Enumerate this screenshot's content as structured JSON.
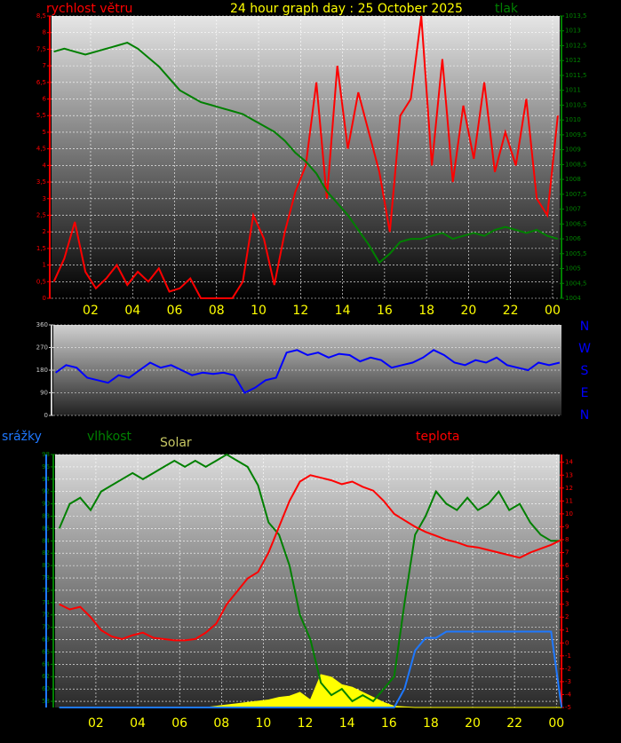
{
  "chart_data": [
    {
      "type": "line",
      "title": "24 hour graph day : 25 October 2025",
      "y_label": "rychlost větru",
      "y2_label": "tlak",
      "grid": true,
      "x": [
        0.25,
        0.75,
        1.25,
        1.75,
        2.25,
        2.75,
        3.25,
        3.75,
        4.25,
        4.75,
        5.25,
        5.75,
        6.25,
        6.75,
        7.25,
        7.75,
        8.25,
        8.75,
        9.25,
        9.75,
        10.25,
        10.75,
        11.25,
        11.75,
        12.25,
        12.75,
        13.25,
        13.75,
        14.25,
        14.75,
        15.25,
        15.75,
        16.25,
        16.75,
        17.25,
        17.75,
        18.25,
        18.75,
        19.25,
        19.75,
        20.25,
        20.75,
        21.25,
        21.75,
        22.25,
        22.75,
        23.25,
        23.75,
        24.25
      ],
      "xlim": [
        0.14,
        24.34
      ],
      "xticks": [
        {
          "value": 2,
          "label": "02"
        },
        {
          "value": 4,
          "label": "04"
        },
        {
          "value": 6,
          "label": "06"
        },
        {
          "value": 8,
          "label": "08"
        },
        10,
        12,
        14,
        16,
        18,
        20,
        22,
        {
          "value": 24,
          "label": "00"
        }
      ],
      "ylim": [
        0,
        8.5
      ],
      "yticks": [
        0,
        {
          "value": 0.5,
          "label": "0,5"
        },
        1,
        {
          "value": 1.5,
          "label": "1,5"
        },
        2,
        {
          "value": 2.5,
          "label": "2,5"
        },
        3,
        {
          "value": 3.5,
          "label": "3,5"
        },
        4,
        {
          "value": 4.5,
          "label": "4,5"
        },
        5,
        {
          "value": 5.5,
          "label": "5,5"
        },
        6,
        {
          "value": 6.5,
          "label": "6,5"
        },
        7,
        {
          "value": 7.5,
          "label": "7,5"
        },
        8,
        {
          "value": 8.5,
          "label": "8,5"
        }
      ],
      "y2lim": [
        1004,
        1013.5
      ],
      "y2ticks": [
        1004,
        {
          "value": 1004.5,
          "label": "1004,5"
        },
        1005,
        {
          "value": 1005.5,
          "label": "1005,5"
        },
        1006,
        {
          "value": 1006.5,
          "label": "1006,5"
        },
        1007,
        {
          "value": 1007.5,
          "label": "1007,5"
        },
        1008,
        {
          "value": 1008.5,
          "label": "1008,5"
        },
        1009,
        {
          "value": 1009.5,
          "label": "1009,5"
        },
        1010,
        {
          "value": 1010.5,
          "label": "1010,5"
        },
        1011,
        {
          "value": 1011.5,
          "label": "1011,5"
        },
        1012,
        {
          "value": 1012.5,
          "label": "1012,5"
        },
        1013,
        {
          "value": 1013.5,
          "label": "1013,5"
        }
      ],
      "series": [
        {
          "color": "#ff0000",
          "values": [
            0.5,
            1.2,
            2.3,
            0.8,
            0.3,
            0.6,
            1,
            0.4,
            0.8,
            0.5,
            0.9,
            0.2,
            0.3,
            0.6,
            0,
            0,
            0,
            0,
            0.5,
            2.5,
            1.8,
            0.4,
            2,
            3.2,
            4,
            6.5,
            3,
            7,
            4.5,
            6.2,
            5,
            3.8,
            2,
            5.5,
            6,
            8.5,
            4,
            7.2,
            3.5,
            5.8,
            4.2,
            6.5,
            3.8,
            5,
            4,
            6,
            3,
            2.5,
            5.5
          ]
        },
        {
          "color": "#008000",
          "axis": "y2",
          "values": [
            1012.3,
            1012.4,
            1012.3,
            1012.2,
            1012.3,
            1012.4,
            1012.5,
            1012.6,
            1012.4,
            1012.1,
            1011.8,
            1011.4,
            1011,
            1010.8,
            1010.6,
            1010.5,
            1010.4,
            1010.3,
            1010.2,
            1010,
            1009.8,
            1009.6,
            1009.3,
            1008.9,
            1008.6,
            1008.2,
            1007.6,
            1007.2,
            1006.8,
            1006.3,
            1005.8,
            1005.2,
            1005.5,
            1005.9,
            1006,
            1006,
            1006.1,
            1006.2,
            1006,
            1006.1,
            1006.2,
            1006.1,
            1006.3,
            1006.4,
            1006.3,
            1006.2,
            1006.3,
            1006.1,
            1006
          ]
        }
      ]
    },
    {
      "type": "line",
      "grid": true,
      "direction_labels": [
        "N",
        "W",
        "S",
        "E",
        "N"
      ],
      "x": [
        0.25,
        0.75,
        1.25,
        1.75,
        2.25,
        2.75,
        3.25,
        3.75,
        4.25,
        4.75,
        5.25,
        5.75,
        6.25,
        6.75,
        7.25,
        7.75,
        8.25,
        8.75,
        9.25,
        9.75,
        10.25,
        10.75,
        11.25,
        11.75,
        12.25,
        12.75,
        13.25,
        13.75,
        14.25,
        14.75,
        15.25,
        15.75,
        16.25,
        16.75,
        17.25,
        17.75,
        18.25,
        18.75,
        19.25,
        19.75,
        20.25,
        20.75,
        21.25,
        21.75,
        22.25,
        22.75,
        23.25,
        23.75,
        24.25
      ],
      "xlim": [
        0.14,
        24.34
      ],
      "ylim": [
        0,
        360
      ],
      "yticks": [
        0,
        90,
        180,
        270,
        360
      ],
      "series": [
        {
          "color": "#0000ff",
          "values": [
            170,
            200,
            190,
            150,
            140,
            130,
            160,
            150,
            180,
            210,
            190,
            200,
            180,
            160,
            170,
            165,
            170,
            160,
            90,
            110,
            140,
            150,
            250,
            260,
            240,
            250,
            230,
            245,
            240,
            215,
            230,
            220,
            190,
            200,
            210,
            230,
            260,
            240,
            210,
            200,
            220,
            210,
            230,
            200,
            190,
            180,
            210,
            200,
            210
          ]
        }
      ]
    },
    {
      "type": "line",
      "grid": true,
      "x": [
        0.25,
        0.75,
        1.25,
        1.75,
        2.25,
        2.75,
        3.25,
        3.75,
        4.25,
        4.75,
        5.25,
        5.75,
        6.25,
        6.75,
        7.25,
        7.75,
        8.25,
        8.75,
        9.25,
        9.75,
        10.25,
        10.75,
        11.25,
        11.75,
        12.25,
        12.75,
        13.25,
        13.75,
        14.25,
        14.75,
        15.25,
        15.75,
        16.25,
        16.75,
        17.25,
        17.75,
        18.25,
        18.75,
        19.25,
        19.75,
        20.25,
        20.75,
        21.25,
        21.75,
        22.25,
        22.75,
        23.25,
        23.75,
        24.25
      ],
      "xlim": [
        0.05,
        24.16
      ],
      "xticks": [
        {
          "value": 2,
          "label": "02"
        },
        {
          "value": 4,
          "label": "04"
        },
        {
          "value": 6,
          "label": "06"
        },
        {
          "value": 8,
          "label": "08"
        },
        10,
        12,
        14,
        16,
        18,
        20,
        22,
        {
          "value": 24,
          "label": "00"
        }
      ],
      "ylim": [
        57,
        98
      ],
      "yticks": [
        58,
        60,
        62,
        64,
        66,
        68,
        70,
        72,
        74,
        76,
        78,
        80,
        82,
        84,
        86,
        88,
        90,
        92,
        94,
        96,
        98
      ],
      "y2lim": [
        -5,
        14.6
      ],
      "y2ticks": [
        -5,
        -4,
        -3,
        -2,
        -1,
        0,
        1,
        2,
        3,
        4,
        5,
        6,
        7,
        8,
        9,
        10,
        11,
        12,
        13,
        14
      ],
      "y3lim": [
        0,
        4
      ],
      "y4lim": [
        0,
        1000
      ],
      "series": [
        {
          "name": "Solar",
          "color": "#ffff00",
          "label_color": "#c8c864",
          "axis": "y4",
          "area": true,
          "values": [
            0,
            0,
            0,
            0,
            0,
            0,
            0,
            0,
            0,
            0,
            0,
            0,
            0,
            0,
            0,
            5,
            10,
            15,
            20,
            25,
            30,
            40,
            45,
            60,
            30,
            130,
            120,
            90,
            80,
            60,
            40,
            20,
            5,
            2,
            0,
            0,
            0,
            0,
            0,
            0,
            0,
            0,
            0,
            0,
            0,
            0,
            0,
            0,
            0
          ]
        },
        {
          "name": "vlhkost",
          "color": "#008000",
          "values": [
            86,
            90,
            91,
            89,
            92,
            93,
            94,
            95,
            94,
            95,
            96,
            97,
            96,
            97,
            96,
            97,
            98,
            97,
            96,
            93,
            87,
            85,
            80,
            72,
            68,
            61,
            59,
            60,
            58,
            59,
            58,
            60,
            62,
            74,
            85,
            88,
            92,
            90,
            89,
            91,
            89,
            90,
            92,
            89,
            90,
            87,
            85,
            84,
            84
          ]
        },
        {
          "name": "teplota",
          "color": "#ff0000",
          "axis": "y2",
          "values": [
            3,
            2.6,
            2.8,
            2,
            1,
            0.5,
            0.3,
            0.6,
            0.8,
            0.4,
            0.3,
            0.2,
            0.2,
            0.3,
            0.8,
            1.5,
            3,
            4,
            5,
            5.5,
            7,
            9,
            11,
            12.5,
            13,
            12.8,
            12.6,
            12.3,
            12.5,
            12.1,
            11.8,
            11,
            10,
            9.5,
            9,
            8.6,
            8.3,
            8,
            7.8,
            7.5,
            7.4,
            7.2,
            7,
            6.8,
            6.6,
            7,
            7.3,
            7.6,
            8
          ]
        },
        {
          "name": "srážky",
          "color": "#1e78ff",
          "axis": "y3",
          "values": [
            0,
            0,
            0,
            0,
            0,
            0,
            0,
            0,
            0,
            0,
            0,
            0,
            0,
            0,
            0,
            0,
            0,
            0,
            0,
            0,
            0,
            0,
            0,
            0,
            0,
            0,
            0,
            0,
            0,
            0,
            0,
            0,
            0,
            0.3,
            0.9,
            1.1,
            1.1,
            1.2,
            1.2,
            1.2,
            1.2,
            1.2,
            1.2,
            1.2,
            1.2,
            1.2,
            1.2,
            1.2,
            0
          ]
        }
      ]
    }
  ]
}
